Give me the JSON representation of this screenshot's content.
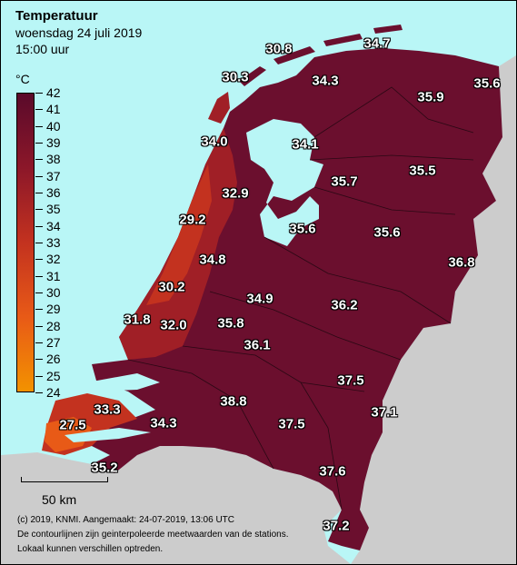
{
  "title": "Temperatuur",
  "date_line": "woensdag 24 juli 2019",
  "time_line": "15:00 uur",
  "legend": {
    "unit": "°C",
    "min": 24,
    "max": 42,
    "ticks": [
      "42",
      "41",
      "40",
      "39",
      "38",
      "37",
      "36",
      "35",
      "34",
      "33",
      "32",
      "31",
      "30",
      "29",
      "28",
      "27",
      "26",
      "25",
      "24"
    ],
    "colors": [
      "#f39200",
      "#e85a17",
      "#c3321f",
      "#8c1729",
      "#5a0a2a"
    ]
  },
  "colors": {
    "sea": "#b9f6f6",
    "foreign_land": "#cccccc",
    "hot": "#6b0f2e",
    "coast": "#a01f26"
  },
  "stations": [
    {
      "value": "30.8"
    },
    {
      "value": "34.7"
    },
    {
      "value": "30.3"
    },
    {
      "value": "34.3"
    },
    {
      "value": "35.9"
    },
    {
      "value": "35.6"
    },
    {
      "value": "34.0"
    },
    {
      "value": "34.1"
    },
    {
      "value": "35.7"
    },
    {
      "value": "35.5"
    },
    {
      "value": "32.9"
    },
    {
      "value": "29.2"
    },
    {
      "value": "35.6"
    },
    {
      "value": "35.6"
    },
    {
      "value": "34.8"
    },
    {
      "value": "36.8"
    },
    {
      "value": "30.2"
    },
    {
      "value": "34.9"
    },
    {
      "value": "36.2"
    },
    {
      "value": "31.8"
    },
    {
      "value": "32.0"
    },
    {
      "value": "35.8"
    },
    {
      "value": "36.1"
    },
    {
      "value": "37.5"
    },
    {
      "value": "38.8"
    },
    {
      "value": "33.3"
    },
    {
      "value": "37.1"
    },
    {
      "value": "27.5"
    },
    {
      "value": "34.3"
    },
    {
      "value": "37.5"
    },
    {
      "value": "35.2"
    },
    {
      "value": "37.6"
    },
    {
      "value": "37.2"
    }
  ],
  "scale": {
    "label": "50 km"
  },
  "footer": [
    "(c) 2019, KNMI. Aangemaakt: 24-07-2019, 13:06 UTC",
    "De contourlijnen zijn geinterpoleerde meetwaarden van de stations.",
    "Lokaal kunnen verschillen optreden."
  ]
}
